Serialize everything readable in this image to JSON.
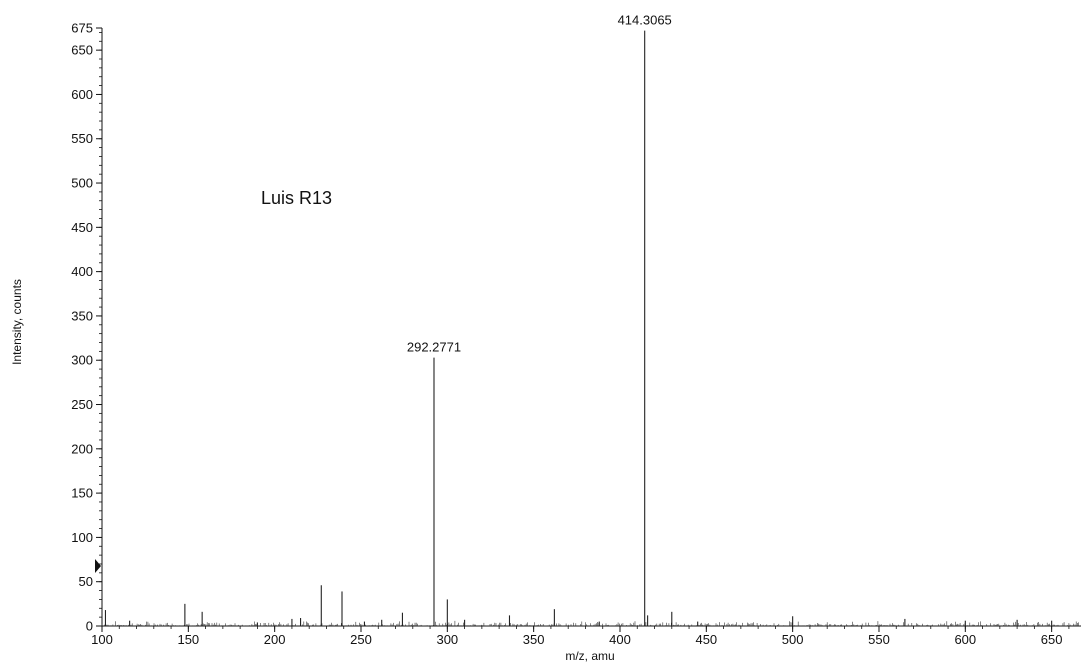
{
  "chart_data": {
    "type": "line",
    "annotation": "Luis R13",
    "xlabel": "m/z, amu",
    "ylabel": "Intensity, counts",
    "xlim": [
      100,
      667
    ],
    "ylim": [
      0,
      675
    ],
    "x_ticks": [
      100,
      150,
      200,
      250,
      300,
      350,
      400,
      450,
      500,
      550,
      600,
      650
    ],
    "y_ticks": [
      0,
      50,
      100,
      150,
      200,
      250,
      300,
      350,
      400,
      450,
      500,
      550,
      600,
      650,
      675
    ],
    "grid": false,
    "peak_labels": [
      {
        "x": 414.3065,
        "text": "414.3065"
      },
      {
        "x": 292.2771,
        "text": "292.2771"
      }
    ],
    "peaks": [
      {
        "x": 102,
        "y": 18
      },
      {
        "x": 116,
        "y": 6
      },
      {
        "x": 148,
        "y": 25
      },
      {
        "x": 158,
        "y": 16
      },
      {
        "x": 190,
        "y": 4
      },
      {
        "x": 210,
        "y": 8
      },
      {
        "x": 215,
        "y": 9
      },
      {
        "x": 227,
        "y": 46
      },
      {
        "x": 239,
        "y": 39
      },
      {
        "x": 252,
        "y": 5
      },
      {
        "x": 262,
        "y": 7
      },
      {
        "x": 274,
        "y": 15
      },
      {
        "x": 292.2771,
        "y": 303
      },
      {
        "x": 300,
        "y": 30
      },
      {
        "x": 310,
        "y": 7
      },
      {
        "x": 336,
        "y": 12
      },
      {
        "x": 362,
        "y": 19
      },
      {
        "x": 388,
        "y": 5
      },
      {
        "x": 414.3065,
        "y": 672
      },
      {
        "x": 416,
        "y": 12
      },
      {
        "x": 430,
        "y": 16
      },
      {
        "x": 445,
        "y": 5
      },
      {
        "x": 500,
        "y": 11
      },
      {
        "x": 565,
        "y": 8
      },
      {
        "x": 600,
        "y": 6
      },
      {
        "x": 630,
        "y": 7
      },
      {
        "x": 650,
        "y": 6
      }
    ]
  }
}
